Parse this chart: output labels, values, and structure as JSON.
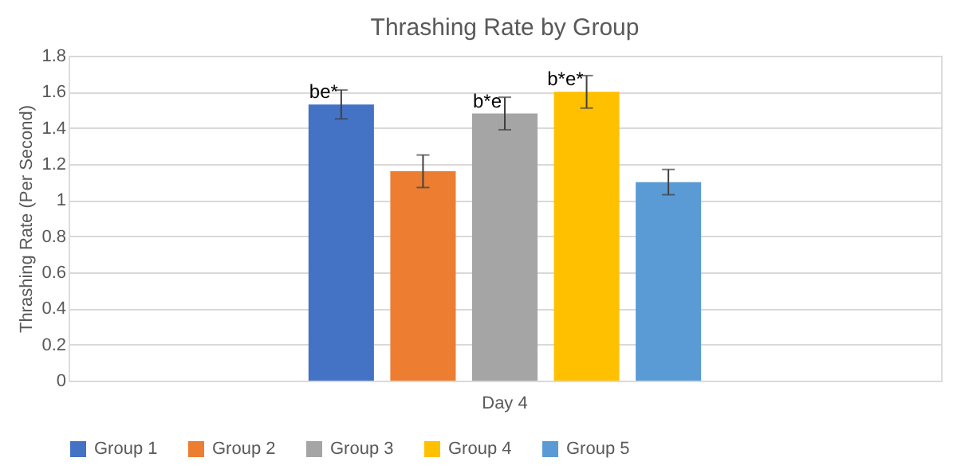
{
  "chart_data": {
    "type": "bar",
    "title": "Thrashing Rate by Group",
    "ylabel": "Thrashing Rate (Per Second)",
    "categories": [
      "Day 4"
    ],
    "series": [
      {
        "name": "Group 1",
        "color": "#4472c4",
        "values": [
          1.53
        ],
        "errors": [
          0.08
        ],
        "value_labels": [
          "be*"
        ]
      },
      {
        "name": "Group 2",
        "color": "#ed7d31",
        "values": [
          1.16
        ],
        "errors": [
          0.09
        ],
        "value_labels": [
          null
        ]
      },
      {
        "name": "Group 3",
        "color": "#a5a5a5",
        "values": [
          1.48
        ],
        "errors": [
          0.09
        ],
        "value_labels": [
          "b*e"
        ]
      },
      {
        "name": "Group 4",
        "color": "#ffc000",
        "values": [
          1.6
        ],
        "errors": [
          0.09
        ],
        "value_labels": [
          "b*e*"
        ]
      },
      {
        "name": "Group 5",
        "color": "#5b9bd5",
        "values": [
          1.1
        ],
        "errors": [
          0.07
        ],
        "value_labels": [
          null
        ]
      }
    ],
    "ylim": [
      0,
      1.8
    ],
    "yticks": [
      0,
      0.2,
      0.4,
      0.6,
      0.8,
      1,
      1.2,
      1.4,
      1.6,
      1.8
    ],
    "grid": "y",
    "legend": "bottom"
  }
}
